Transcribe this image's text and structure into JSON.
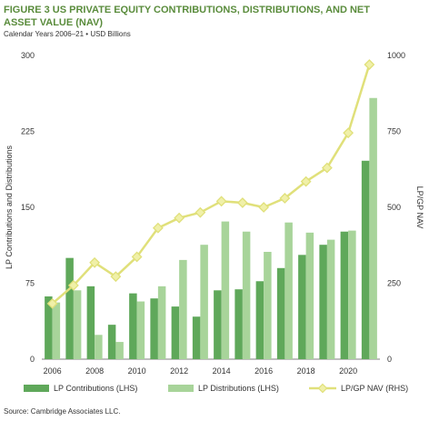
{
  "header": {
    "title": "FIGURE 3  US PRIVATE EQUITY CONTRIBUTIONS, DISTRIBUTIONS, AND NET ASSET VALUE (NAV)",
    "subtitle": "Calendar Years 2006–21 • USD Billions"
  },
  "footer": {
    "source": "Source: Cambridge Associates LLC."
  },
  "chart_data": {
    "type": "bar",
    "categories": [
      2006,
      2007,
      2008,
      2009,
      2010,
      2011,
      2012,
      2013,
      2014,
      2015,
      2016,
      2017,
      2018,
      2019,
      2020,
      2021
    ],
    "x_tick_labels": [
      "2006",
      "2008",
      "2010",
      "2012",
      "2014",
      "2016",
      "2018",
      "2020"
    ],
    "ylabel_left": "LP Contributions and Distributions",
    "ylabel_right": "LP/GP NAV",
    "ylim_left": [
      0,
      300
    ],
    "ylim_right": [
      0,
      1000
    ],
    "yticks_left": [
      "0",
      "75",
      "150",
      "225",
      "300"
    ],
    "yticks_right": [
      "0",
      "250",
      "500",
      "750",
      "1000"
    ],
    "grid": false,
    "legend_position": "bottom",
    "series": [
      {
        "name": "LP Contributions (LHS)",
        "kind": "bar",
        "axis": "left",
        "color": "#5fa85a",
        "values": [
          62,
          100,
          72,
          34,
          65,
          60,
          52,
          42,
          68,
          69,
          77,
          90,
          103,
          113,
          126,
          196
        ]
      },
      {
        "name": "LP Distributions (LHS)",
        "kind": "bar",
        "axis": "left",
        "color": "#a8d49a",
        "values": [
          56,
          68,
          24,
          17,
          57,
          72,
          98,
          113,
          136,
          126,
          106,
          135,
          125,
          118,
          127,
          258
        ]
      },
      {
        "name": "LP/GP NAV (RHS)",
        "kind": "line",
        "axis": "right",
        "color": "#e0e07a",
        "marker_color": "#f0f0a8",
        "values": [
          183,
          243,
          318,
          272,
          337,
          432,
          465,
          483,
          520,
          515,
          500,
          530,
          585,
          630,
          745,
          970
        ]
      }
    ]
  }
}
